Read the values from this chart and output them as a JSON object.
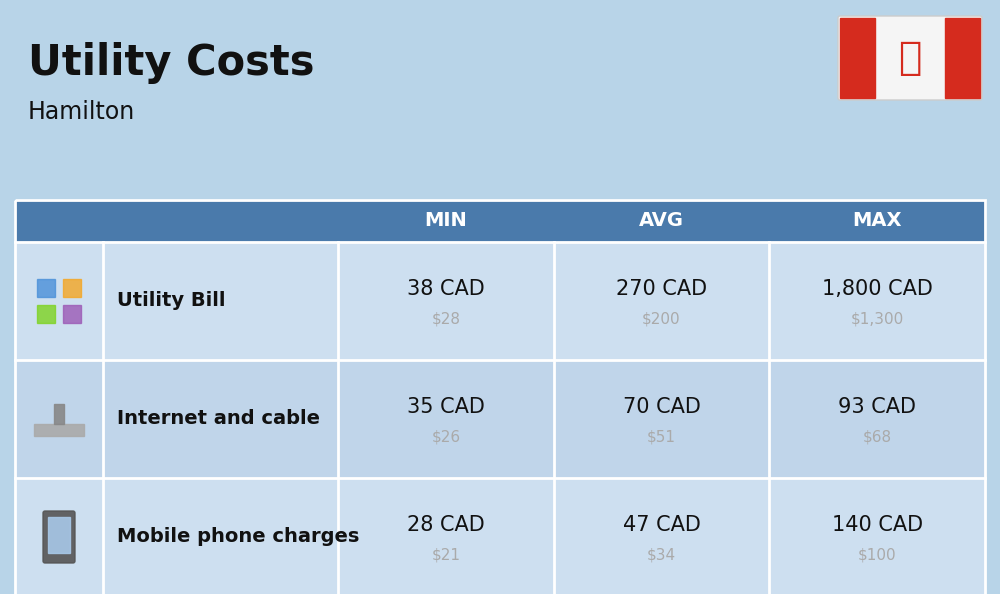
{
  "title": "Utility Costs",
  "subtitle": "Hamilton",
  "background_color": "#b8d4e8",
  "header_bg_color": "#4a7aab",
  "header_text_color": "#ffffff",
  "row_bg_even": "#cddff0",
  "row_bg_odd": "#daeaf5",
  "table_border_color": "#ffffff",
  "col_headers": [
    "MIN",
    "AVG",
    "MAX"
  ],
  "rows": [
    {
      "label": "Utility Bill",
      "min_cad": "38 CAD",
      "min_usd": "$28",
      "avg_cad": "270 CAD",
      "avg_usd": "$200",
      "max_cad": "1,800 CAD",
      "max_usd": "$1,300"
    },
    {
      "label": "Internet and cable",
      "min_cad": "35 CAD",
      "min_usd": "$26",
      "avg_cad": "70 CAD",
      "avg_usd": "$51",
      "max_cad": "93 CAD",
      "max_usd": "$68"
    },
    {
      "label": "Mobile phone charges",
      "min_cad": "28 CAD",
      "min_usd": "$21",
      "avg_cad": "47 CAD",
      "avg_usd": "$34",
      "max_cad": "140 CAD",
      "max_usd": "$100"
    }
  ],
  "cad_fontsize": 15,
  "usd_fontsize": 11,
  "usd_color": "#aaaaaa",
  "label_fontsize": 14,
  "header_fontsize": 14,
  "title_fontsize": 30,
  "subtitle_fontsize": 17,
  "flag_red": "#d52b1e",
  "flag_white": "#f5f5f5"
}
